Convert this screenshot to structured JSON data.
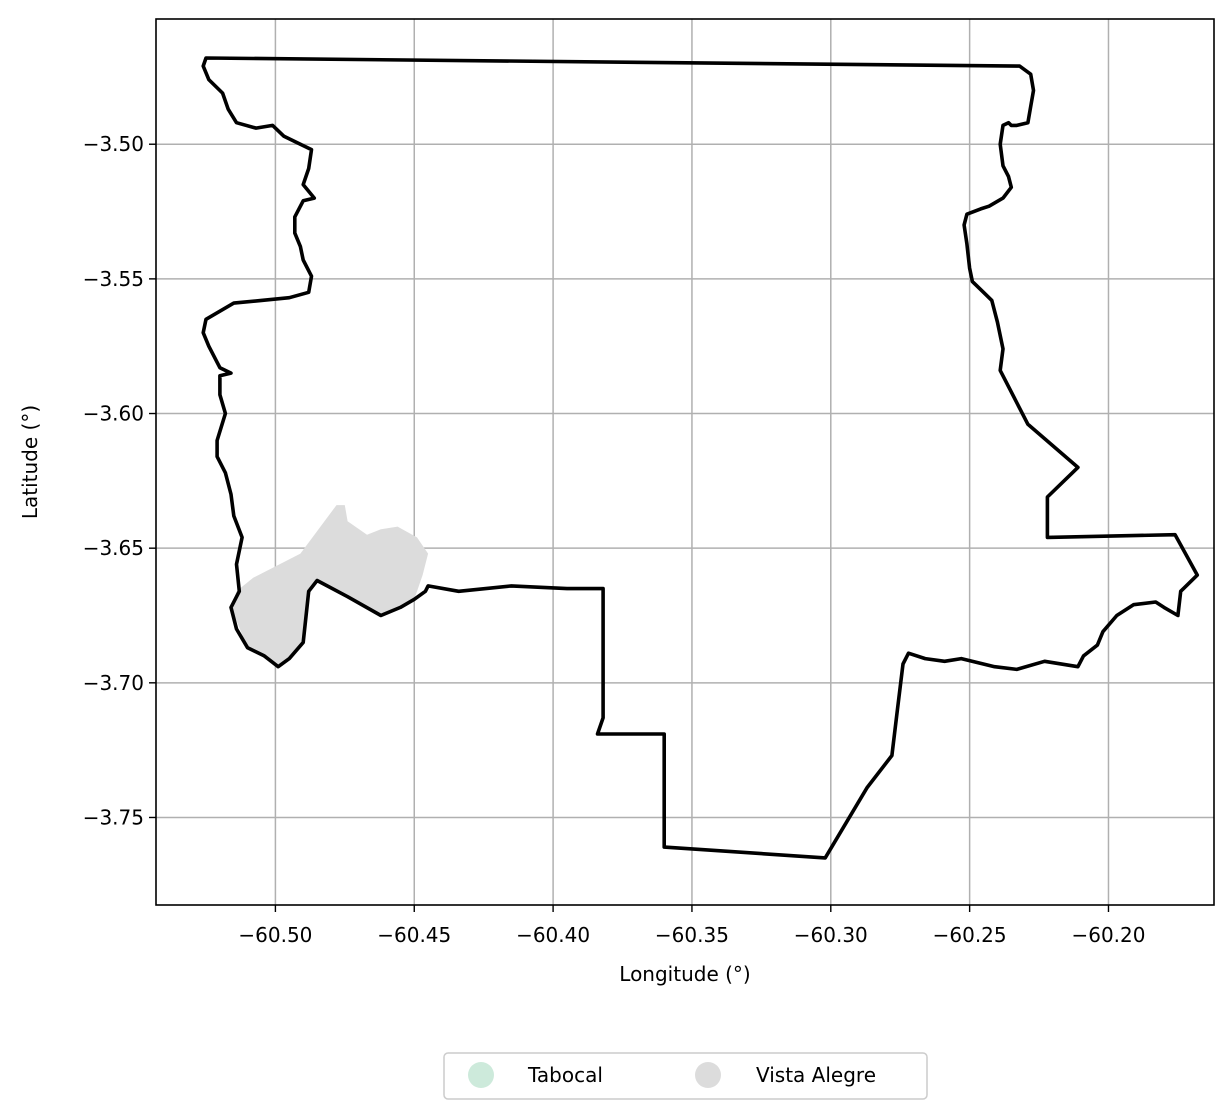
{
  "chart_data": {
    "type": "map",
    "xlabel": "Longitude (°)",
    "ylabel": "Latitude (°)",
    "xlim": [
      -60.543,
      -60.162
    ],
    "ylim": [
      -3.7825,
      -3.4535
    ],
    "xticks": [
      -60.5,
      -60.45,
      -60.4,
      -60.35,
      -60.3,
      -60.25,
      -60.2
    ],
    "xtick_labels": [
      "−60.50",
      "−60.45",
      "−60.40",
      "−60.35",
      "−60.30",
      "−60.25",
      "−60.20"
    ],
    "yticks": [
      -3.5,
      -3.55,
      -3.6,
      -3.65,
      -3.7,
      -3.75
    ],
    "ytick_labels": [
      "−3.50",
      "−3.55",
      "−3.60",
      "−3.65",
      "−3.70",
      "−3.75"
    ],
    "grid": true,
    "legend": {
      "placement": "bottom-center",
      "entries": [
        {
          "name": "Tabocal",
          "color": "#cdeadb"
        },
        {
          "name": "Vista Alegre",
          "color": "#dcdcdc"
        }
      ]
    },
    "boundary": {
      "color": "#000000",
      "coordinates": [
        [
          -60.525,
          -3.468
        ],
        [
          -60.232,
          -3.471
        ],
        [
          -60.228,
          -3.474
        ],
        [
          -60.227,
          -3.48
        ],
        [
          -60.228,
          -3.486
        ],
        [
          -60.229,
          -3.492
        ],
        [
          -60.233,
          -3.493
        ],
        [
          -60.235,
          -3.493
        ],
        [
          -60.236,
          -3.492
        ],
        [
          -60.238,
          -3.493
        ],
        [
          -60.239,
          -3.5
        ],
        [
          -60.238,
          -3.508
        ],
        [
          -60.236,
          -3.512
        ],
        [
          -60.235,
          -3.516
        ],
        [
          -60.238,
          -3.52
        ],
        [
          -60.243,
          -3.523
        ],
        [
          -60.246,
          -3.524
        ],
        [
          -60.251,
          -3.526
        ],
        [
          -60.252,
          -3.53
        ],
        [
          -60.251,
          -3.537
        ],
        [
          -60.25,
          -3.546
        ],
        [
          -60.249,
          -3.551
        ],
        [
          -60.245,
          -3.555
        ],
        [
          -60.242,
          -3.558
        ],
        [
          -60.24,
          -3.566
        ],
        [
          -60.238,
          -3.576
        ],
        [
          -60.239,
          -3.584
        ],
        [
          -60.229,
          -3.604
        ],
        [
          -60.211,
          -3.62
        ],
        [
          -60.222,
          -3.631
        ],
        [
          -60.222,
          -3.646
        ],
        [
          -60.176,
          -3.645
        ],
        [
          -60.168,
          -3.66
        ],
        [
          -60.174,
          -3.666
        ],
        [
          -60.175,
          -3.675
        ],
        [
          -60.18,
          -3.672
        ],
        [
          -60.183,
          -3.67
        ],
        [
          -60.191,
          -3.671
        ],
        [
          -60.197,
          -3.675
        ],
        [
          -60.202,
          -3.681
        ],
        [
          -60.204,
          -3.686
        ],
        [
          -60.209,
          -3.69
        ],
        [
          -60.211,
          -3.694
        ],
        [
          -60.223,
          -3.692
        ],
        [
          -60.233,
          -3.695
        ],
        [
          -60.241,
          -3.694
        ],
        [
          -60.253,
          -3.691
        ],
        [
          -60.259,
          -3.692
        ],
        [
          -60.266,
          -3.691
        ],
        [
          -60.272,
          -3.689
        ],
        [
          -60.274,
          -3.693
        ],
        [
          -60.276,
          -3.71
        ],
        [
          -60.278,
          -3.727
        ],
        [
          -60.287,
          -3.739
        ],
        [
          -60.302,
          -3.765
        ],
        [
          -60.36,
          -3.761
        ],
        [
          -60.36,
          -3.719
        ],
        [
          -60.384,
          -3.719
        ],
        [
          -60.382,
          -3.713
        ],
        [
          -60.382,
          -3.665
        ],
        [
          -60.395,
          -3.665
        ],
        [
          -60.415,
          -3.664
        ],
        [
          -60.434,
          -3.666
        ],
        [
          -60.445,
          -3.664
        ],
        [
          -60.446,
          -3.666
        ],
        [
          -60.45,
          -3.669
        ],
        [
          -60.455,
          -3.672
        ],
        [
          -60.462,
          -3.675
        ],
        [
          -60.474,
          -3.668
        ],
        [
          -60.485,
          -3.662
        ],
        [
          -60.488,
          -3.666
        ],
        [
          -60.49,
          -3.685
        ],
        [
          -60.495,
          -3.691
        ],
        [
          -60.499,
          -3.694
        ],
        [
          -60.504,
          -3.69
        ],
        [
          -60.51,
          -3.687
        ],
        [
          -60.514,
          -3.68
        ],
        [
          -60.516,
          -3.672
        ],
        [
          -60.513,
          -3.666
        ],
        [
          -60.514,
          -3.656
        ],
        [
          -60.512,
          -3.646
        ],
        [
          -60.515,
          -3.638
        ],
        [
          -60.516,
          -3.63
        ],
        [
          -60.518,
          -3.622
        ],
        [
          -60.521,
          -3.616
        ],
        [
          -60.521,
          -3.61
        ],
        [
          -60.518,
          -3.6
        ],
        [
          -60.52,
          -3.593
        ],
        [
          -60.52,
          -3.586
        ],
        [
          -60.516,
          -3.585
        ],
        [
          -60.52,
          -3.583
        ],
        [
          -60.524,
          -3.575
        ],
        [
          -60.526,
          -3.57
        ],
        [
          -60.525,
          -3.565
        ],
        [
          -60.52,
          -3.562
        ],
        [
          -60.515,
          -3.559
        ],
        [
          -60.505,
          -3.558
        ],
        [
          -60.495,
          -3.557
        ],
        [
          -60.488,
          -3.555
        ],
        [
          -60.487,
          -3.549
        ],
        [
          -60.49,
          -3.543
        ],
        [
          -60.491,
          -3.538
        ],
        [
          -60.493,
          -3.533
        ],
        [
          -60.493,
          -3.527
        ],
        [
          -60.49,
          -3.521
        ],
        [
          -60.486,
          -3.52
        ],
        [
          -60.49,
          -3.515
        ],
        [
          -60.488,
          -3.509
        ],
        [
          -60.487,
          -3.502
        ],
        [
          -60.491,
          -3.5
        ],
        [
          -60.497,
          -3.497
        ],
        [
          -60.501,
          -3.493
        ],
        [
          -60.507,
          -3.494
        ],
        [
          -60.514,
          -3.492
        ],
        [
          -60.517,
          -3.487
        ],
        [
          -60.519,
          -3.481
        ],
        [
          -60.524,
          -3.476
        ],
        [
          -60.526,
          -3.471
        ],
        [
          -60.525,
          -3.468
        ]
      ]
    },
    "regions": [
      {
        "name": "Vista Alegre",
        "color": "#dcdcdc",
        "coordinates": [
          [
            -60.514,
            -3.666
          ],
          [
            -60.508,
            -3.661
          ],
          [
            -60.491,
            -3.652
          ],
          [
            -60.478,
            -3.634
          ],
          [
            -60.475,
            -3.634
          ],
          [
            -60.474,
            -3.64
          ],
          [
            -60.467,
            -3.645
          ],
          [
            -60.462,
            -3.643
          ],
          [
            -60.456,
            -3.642
          ],
          [
            -60.449,
            -3.646
          ],
          [
            -60.445,
            -3.652
          ],
          [
            -60.447,
            -3.66
          ],
          [
            -60.45,
            -3.669
          ],
          [
            -60.462,
            -3.675
          ],
          [
            -60.485,
            -3.662
          ],
          [
            -60.488,
            -3.666
          ],
          [
            -60.49,
            -3.685
          ],
          [
            -60.499,
            -3.694
          ],
          [
            -60.51,
            -3.687
          ],
          [
            -60.516,
            -3.672
          ]
        ]
      }
    ]
  }
}
